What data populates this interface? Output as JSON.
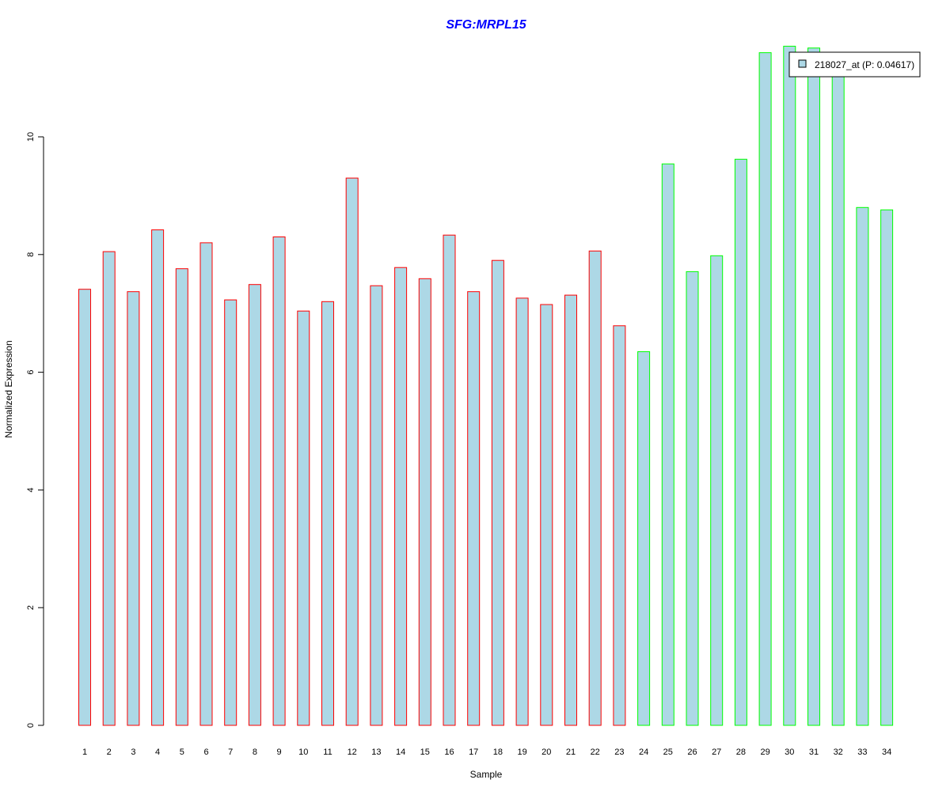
{
  "colors": {
    "bar_fill": "#add8e6",
    "group1_border": "#ff0000",
    "group2_border": "#00ff00",
    "title": "#0000ff",
    "axis": "#000000"
  },
  "chart_data": {
    "type": "bar",
    "title": "SFG:MRPL15",
    "xlabel": "Sample",
    "ylabel": "Normalized Expression",
    "ylim": [
      0,
      11.6
    ],
    "yticks": [
      0,
      2,
      4,
      6,
      8,
      10
    ],
    "categories": [
      "1",
      "2",
      "3",
      "4",
      "5",
      "6",
      "7",
      "8",
      "9",
      "10",
      "11",
      "12",
      "13",
      "14",
      "15",
      "16",
      "17",
      "18",
      "19",
      "20",
      "21",
      "22",
      "23",
      "24",
      "25",
      "26",
      "27",
      "28",
      "29",
      "30",
      "31",
      "32",
      "33",
      "34"
    ],
    "series": [
      {
        "name": "218027_at (P: 0.04617)",
        "values": [
          7.41,
          8.05,
          7.37,
          8.42,
          7.76,
          8.2,
          7.23,
          7.49,
          8.3,
          7.04,
          7.2,
          9.3,
          7.47,
          7.78,
          7.59,
          8.33,
          7.37,
          7.9,
          7.26,
          7.15,
          7.31,
          8.06,
          6.79,
          6.35,
          9.54,
          7.71,
          7.98,
          9.62,
          11.43,
          11.54,
          11.51,
          11.14,
          8.8,
          8.76
        ]
      }
    ],
    "groups": [
      "1",
      "1",
      "1",
      "1",
      "1",
      "1",
      "1",
      "1",
      "1",
      "1",
      "1",
      "1",
      "1",
      "1",
      "1",
      "1",
      "1",
      "1",
      "1",
      "1",
      "1",
      "1",
      "1",
      "2",
      "2",
      "2",
      "2",
      "2",
      "2",
      "2",
      "2",
      "2",
      "2",
      "2"
    ],
    "legend": {
      "position": "top-right",
      "label": "218027_at (P: 0.04617)"
    },
    "grid": false
  }
}
